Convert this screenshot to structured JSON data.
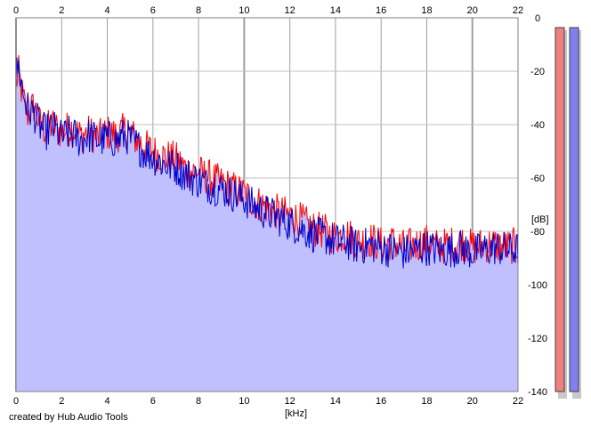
{
  "chart_data": {
    "type": "line",
    "x_unit_label": "[kHz]",
    "y_unit_label": "[dB]",
    "xlim": [
      0,
      22
    ],
    "ylim": [
      -140,
      0
    ],
    "x_ticks": [
      "0",
      "2",
      "4",
      "6",
      "8",
      "10",
      "12",
      "14",
      "16",
      "18",
      "20",
      "22"
    ],
    "y_ticks": [
      "0",
      "-20",
      "-40",
      "-60",
      "-80",
      "-100",
      "-120",
      "-140"
    ],
    "grid": true,
    "series": [
      {
        "color": "#ff0000",
        "x": [
          0,
          0.1,
          0.3,
          0.5,
          0.8,
          1,
          1.3,
          1.6,
          2,
          2.4,
          2.8,
          3.2,
          3.6,
          4,
          4.4,
          4.8,
          5.2,
          5.6,
          6,
          6.5,
          7,
          7.5,
          8,
          8.5,
          9,
          9.5,
          10,
          10.5,
          11,
          11.5,
          12,
          12.5,
          13,
          13.5,
          14,
          14.5,
          15,
          15.5,
          16,
          16.5,
          17,
          17.5,
          18,
          18.5,
          19,
          19.5,
          20,
          20.5,
          21,
          21.5,
          22
        ],
        "y": [
          -25,
          -20,
          -30,
          -36,
          -33,
          -39,
          -42,
          -40,
          -43,
          -41,
          -44,
          -43,
          -45,
          -43,
          -44,
          -42,
          -45,
          -48,
          -50,
          -52,
          -53,
          -57,
          -58,
          -60,
          -62,
          -64,
          -66,
          -69,
          -71,
          -73,
          -74,
          -76,
          -79,
          -80,
          -82,
          -81,
          -84,
          -83,
          -85,
          -84,
          -86,
          -85,
          -84,
          -86,
          -85,
          -84,
          -86,
          -85,
          -85,
          -86,
          -85
        ]
      },
      {
        "color": "#0000cc",
        "x": [
          0,
          0.1,
          0.3,
          0.5,
          0.8,
          1,
          1.3,
          1.6,
          2,
          2.4,
          2.8,
          3.2,
          3.6,
          4,
          4.4,
          4.8,
          5.2,
          5.6,
          6,
          6.5,
          7,
          7.5,
          8,
          8.5,
          9,
          9.5,
          10,
          10.5,
          11,
          11.5,
          12,
          12.5,
          13,
          13.5,
          14,
          14.5,
          15,
          15.5,
          16,
          16.5,
          17,
          17.5,
          18,
          18.5,
          19,
          19.5,
          20,
          20.5,
          21,
          21.5,
          22
        ],
        "y": [
          -22,
          -18,
          -28,
          -34,
          -36,
          -40,
          -43,
          -41,
          -45,
          -43,
          -46,
          -44,
          -46,
          -45,
          -46,
          -44,
          -47,
          -50,
          -52,
          -55,
          -56,
          -59,
          -61,
          -63,
          -64,
          -66,
          -68,
          -71,
          -73,
          -75,
          -77,
          -79,
          -81,
          -82,
          -84,
          -84,
          -86,
          -85,
          -86,
          -87,
          -88,
          -87,
          -86,
          -87,
          -87,
          -86,
          -88,
          -87,
          -86,
          -87,
          -87
        ]
      }
    ],
    "level_meters": [
      {
        "color": "#f08080"
      },
      {
        "color": "#8080f0"
      }
    ]
  },
  "credit": "created by Hub Audio Tools"
}
